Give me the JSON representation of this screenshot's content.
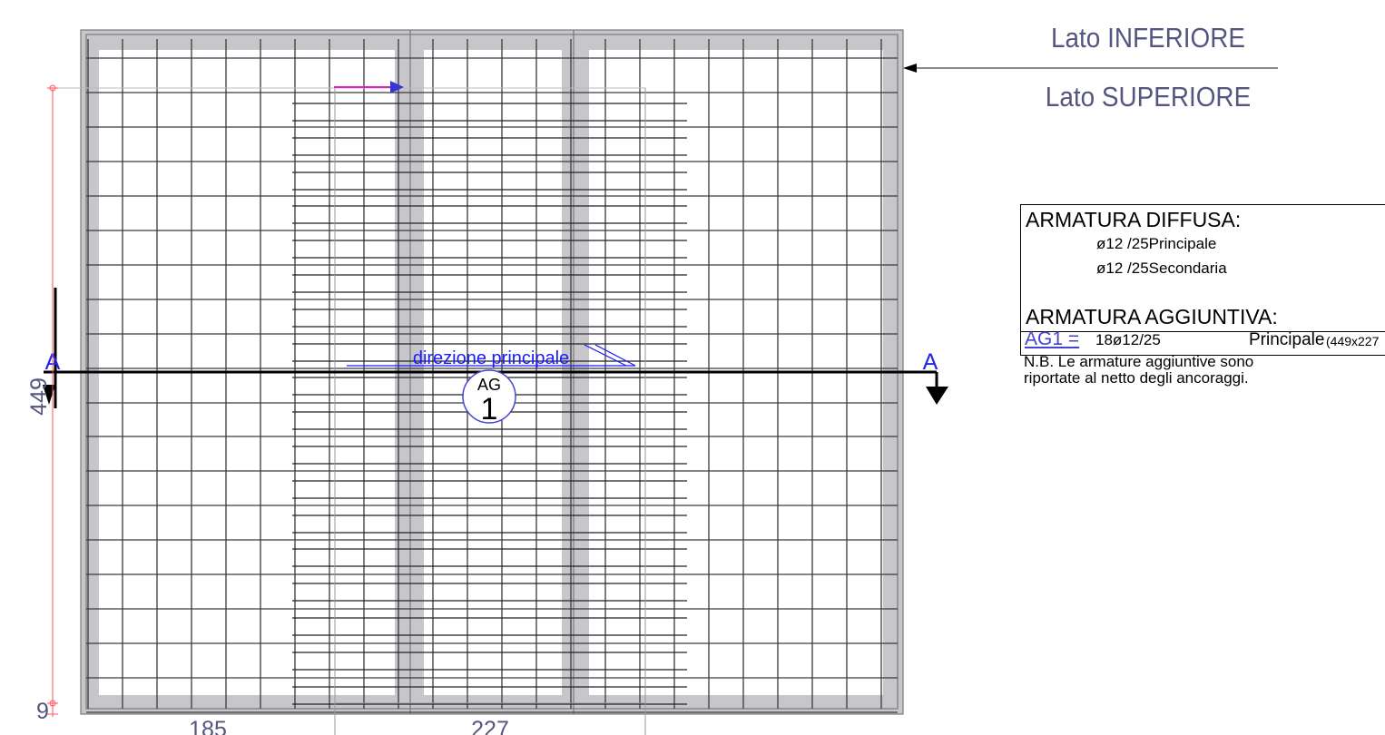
{
  "sides": {
    "lower": "Lato INFERIORE",
    "upper": "Lato SUPERIORE"
  },
  "section": {
    "left_label": "A",
    "right_label": "A"
  },
  "main_direction_label": "direzione principale",
  "tag": {
    "prefix": "AG",
    "number": "1"
  },
  "dimensions": {
    "vertical": "449",
    "bottom_offset": "9",
    "span_1": "185",
    "span_2": "227"
  },
  "legend": {
    "diffusa_title": "ARMATURA DIFFUSA:",
    "diffusa_principale": "ø12 /25Principale",
    "diffusa_secondaria": "ø12 /25Secondaria",
    "aggiuntiva_title": "ARMATURA AGGIUNTIVA:",
    "ag_code": "AG1 =",
    "ag_bars": "18ø12/25",
    "ag_direction": "Principale",
    "ag_size": "(449x227"
  },
  "notes": {
    "line1": "N.B. Le armature aggiuntive sono",
    "line2": "riportate al netto degli ancoraggi."
  },
  "colors": {
    "beam_fill": "#c6c6cb",
    "grid_line": "#3a3a3a",
    "dimension_line": "#ff5555",
    "annotation_blue": "#1a1aff",
    "tag_blue": "#4444cc",
    "direction_pink": "#e020c0",
    "side_text": "#55557f"
  }
}
